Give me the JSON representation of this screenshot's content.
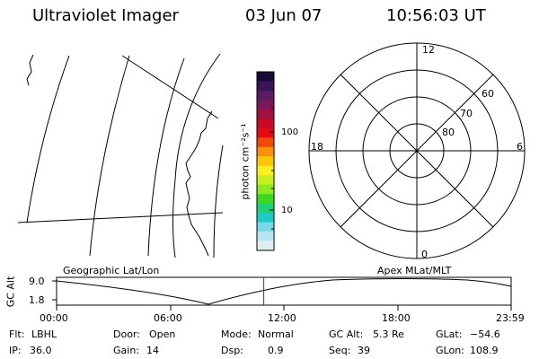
{
  "header": {
    "title": "Ultraviolet Imager",
    "date": "03 Jun 07",
    "time": "10:56:03 UT"
  },
  "colorbar": {
    "unit_label": "photon cm⁻²s⁻¹",
    "ticks": [
      "100",
      "10"
    ],
    "colors": [
      "#1a0a3a",
      "#3a1456",
      "#5c1a62",
      "#7a1a5c",
      "#a01040",
      "#c80a28",
      "#e60a12",
      "#f04a0a",
      "#f8900a",
      "#fbc60a",
      "#f7f020",
      "#c8f020",
      "#8ee820",
      "#3ed820",
      "#1ed07a",
      "#20c8c8",
      "#78d8e8",
      "#b8e6f0",
      "#e0eef2"
    ]
  },
  "polar_plot": {
    "lat_labels": [
      "80",
      "70",
      "60"
    ],
    "mlt_labels": {
      "top": "12",
      "bottom": "0",
      "left": "18",
      "right": "6"
    }
  },
  "timeline": {
    "axis_title": "GC Alt",
    "y_labels": [
      "9.0",
      "1.8"
    ],
    "left_caption": "Geographic Lat/Lon",
    "right_caption": "Apex MLat/MLT",
    "x_labels": [
      "00:00",
      "06:00",
      "12:00",
      "18:00",
      "23:59"
    ],
    "marker_time_hours": 10.93,
    "marker_color": "#e00000"
  },
  "info": {
    "flt_label": "Flt:",
    "flt_value": "LBHL",
    "ip_label": "IP:",
    "ip_value": "36.0",
    "door_label": "Door:",
    "door_value": "Open",
    "gain_label": "Gain:",
    "gain_value": "14",
    "mode_label": "Mode:",
    "mode_value": "Normal",
    "dsp_label": "Dsp:",
    "dsp_value": "0.9",
    "gcalt_label": "GC Alt:",
    "gcalt_value": "5.3 Re",
    "seq_label": "Seq:",
    "seq_value": "39",
    "glat_label": "GLat:",
    "glat_value": "−54.6",
    "glon_label": "GLon:",
    "glon_value": "108.9"
  }
}
